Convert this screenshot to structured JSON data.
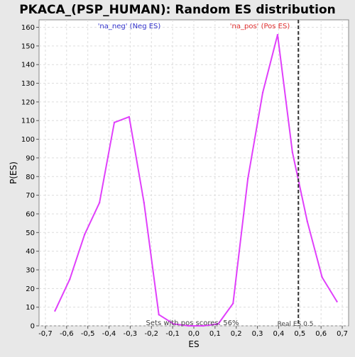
{
  "chart_data": {
    "type": "line",
    "title": "PKACA_(PSP_HUMAN): Random ES distribution",
    "xlabel": "ES",
    "ylabel": "P(ES)",
    "xlim": [
      -0.73,
      0.73
    ],
    "ylim": [
      0,
      164
    ],
    "x_ticks": [
      -0.7,
      -0.6,
      -0.5,
      -0.4,
      -0.3,
      -0.2,
      -0.1,
      0.0,
      0.1,
      0.2,
      0.3,
      0.4,
      0.5,
      0.6,
      0.7
    ],
    "x_tick_labels": [
      "-0,7",
      "-0,6",
      "-0,5",
      "-0,4",
      "-0,3",
      "-0,2",
      "-0,1",
      "0,0",
      "0,1",
      "0,2",
      "0,3",
      "0,4",
      "0,5",
      "0,6",
      "0,7"
    ],
    "y_ticks": [
      0,
      10,
      20,
      30,
      40,
      50,
      60,
      70,
      80,
      90,
      100,
      110,
      120,
      130,
      140,
      150,
      160
    ],
    "grid": true,
    "line_color": "#e040fb",
    "series": [
      {
        "name": "",
        "x": [
          -0.655,
          -0.585,
          -0.515,
          -0.445,
          -0.375,
          -0.305,
          -0.235,
          -0.165,
          -0.095,
          -0.025,
          0.045,
          0.115,
          0.185,
          0.255,
          0.325,
          0.395,
          0.465,
          0.535,
          0.605,
          0.675
        ],
        "y": [
          8,
          25,
          49,
          66,
          109,
          112,
          66,
          6,
          1,
          0,
          0,
          1,
          12,
          79,
          125,
          156,
          93,
          56,
          26,
          13
        ]
      }
    ],
    "annotations": {
      "neg_label": "'na_neg' (Neg ES)",
      "neg_color": "#3333cc",
      "pos_label": "'na_pos' (Pos ES)",
      "pos_color": "#e03030",
      "sets_label": "Sets with pos scores: 56%",
      "real_es_label": "Real ES 0.5",
      "real_es_value": 0.493
    }
  }
}
